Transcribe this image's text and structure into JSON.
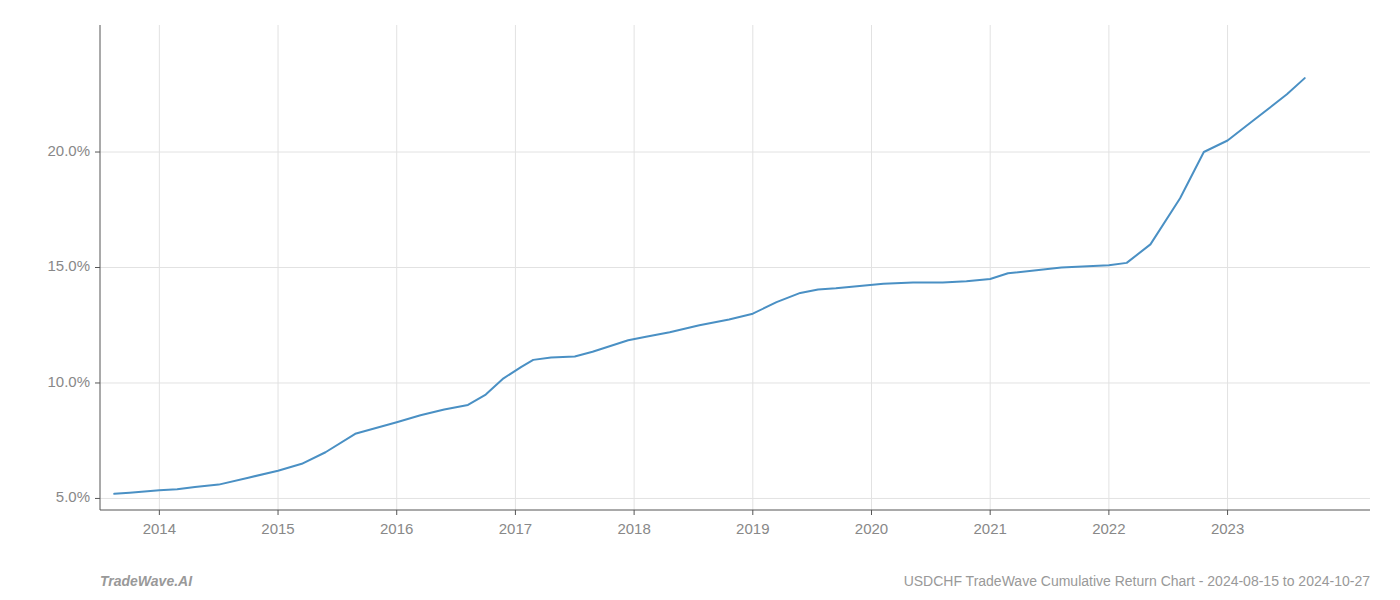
{
  "chart_data": {
    "type": "line",
    "x": [
      2013.62,
      2013.75,
      2014.0,
      2014.15,
      2014.3,
      2014.5,
      2014.75,
      2015.0,
      2015.2,
      2015.4,
      2015.65,
      2016.0,
      2016.2,
      2016.4,
      2016.6,
      2016.75,
      2016.9,
      2017.05,
      2017.15,
      2017.3,
      2017.5,
      2017.65,
      2017.8,
      2017.95,
      2018.1,
      2018.3,
      2018.55,
      2018.8,
      2019.0,
      2019.2,
      2019.4,
      2019.55,
      2019.7,
      2019.9,
      2020.1,
      2020.35,
      2020.6,
      2020.8,
      2021.0,
      2021.15,
      2021.6,
      2022.0,
      2022.15,
      2022.35,
      2022.6,
      2022.8,
      2023.0,
      2023.2,
      2023.5,
      2023.65
    ],
    "values": [
      5.2,
      5.25,
      5.35,
      5.4,
      5.5,
      5.6,
      5.9,
      6.2,
      6.5,
      7.0,
      7.8,
      8.3,
      8.6,
      8.85,
      9.05,
      9.5,
      10.2,
      10.7,
      11.0,
      11.1,
      11.15,
      11.35,
      11.6,
      11.85,
      12.0,
      12.2,
      12.5,
      12.75,
      13.0,
      13.5,
      13.9,
      14.05,
      14.1,
      14.2,
      14.3,
      14.35,
      14.35,
      14.4,
      14.5,
      14.75,
      15.0,
      15.1,
      15.2,
      16.0,
      18.0,
      20.0,
      20.5,
      21.3,
      22.5,
      23.2
    ],
    "color": "#4a90c4",
    "xlim": [
      2013.5,
      2024.2
    ],
    "ylim": [
      4.5,
      25.5
    ],
    "xticks": [
      2014,
      2015,
      2016,
      2017,
      2018,
      2019,
      2020,
      2021,
      2022,
      2023
    ],
    "yticks": [
      {
        "value": 5.0,
        "label": "5.0%"
      },
      {
        "value": 10.0,
        "label": "10.0%"
      },
      {
        "value": 15.0,
        "label": "15.0%"
      },
      {
        "value": 20.0,
        "label": "20.0%"
      }
    ],
    "grid": true,
    "annotations": [
      "TradeWave.AI",
      "USDCHF TradeWave Cumulative Return Chart - 2024-08-15 to 2024-10-27"
    ]
  }
}
